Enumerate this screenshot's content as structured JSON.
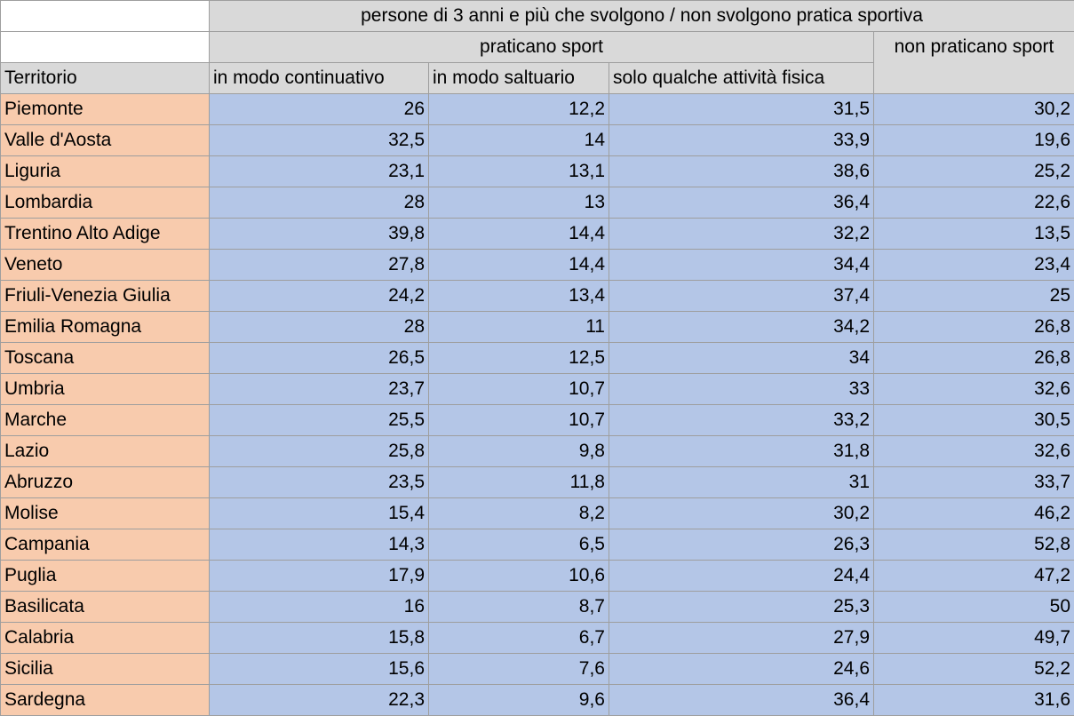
{
  "header": {
    "main_title": "persone di 3 anni e più che svolgono / non svolgono pratica sportiva",
    "group_practice": "praticano sport",
    "group_no_practice": "non praticano sport",
    "col_territory": "Territorio",
    "col_continuous": "in modo continuativo",
    "col_occasional": "in modo saltuario",
    "col_physical": "solo qualche attività fisica"
  },
  "colors": {
    "header_bg": "#d9d9d9",
    "territory_bg": "#f8cbad",
    "value_bg": "#b4c6e7",
    "grid": "#9e9e9e"
  },
  "rows": [
    {
      "territory": "Piemonte",
      "continuous": "26",
      "occasional": "12,2",
      "physical": "31,5",
      "none": "30,2"
    },
    {
      "territory": "Valle d'Aosta",
      "continuous": "32,5",
      "occasional": "14",
      "physical": "33,9",
      "none": "19,6"
    },
    {
      "territory": "Liguria",
      "continuous": "23,1",
      "occasional": "13,1",
      "physical": "38,6",
      "none": "25,2"
    },
    {
      "territory": "Lombardia",
      "continuous": "28",
      "occasional": "13",
      "physical": "36,4",
      "none": "22,6"
    },
    {
      "territory": "Trentino Alto Adige",
      "continuous": "39,8",
      "occasional": "14,4",
      "physical": "32,2",
      "none": "13,5"
    },
    {
      "territory": "Veneto",
      "continuous": "27,8",
      "occasional": "14,4",
      "physical": "34,4",
      "none": "23,4"
    },
    {
      "territory": "Friuli-Venezia Giulia",
      "continuous": "24,2",
      "occasional": "13,4",
      "physical": "37,4",
      "none": "25"
    },
    {
      "territory": "Emilia Romagna",
      "continuous": "28",
      "occasional": "11",
      "physical": "34,2",
      "none": "26,8"
    },
    {
      "territory": "Toscana",
      "continuous": "26,5",
      "occasional": "12,5",
      "physical": "34",
      "none": "26,8"
    },
    {
      "territory": "Umbria",
      "continuous": "23,7",
      "occasional": "10,7",
      "physical": "33",
      "none": "32,6"
    },
    {
      "territory": "Marche",
      "continuous": "25,5",
      "occasional": "10,7",
      "physical": "33,2",
      "none": "30,5"
    },
    {
      "territory": "Lazio",
      "continuous": "25,8",
      "occasional": "9,8",
      "physical": "31,8",
      "none": "32,6"
    },
    {
      "territory": "Abruzzo",
      "continuous": "23,5",
      "occasional": "11,8",
      "physical": "31",
      "none": "33,7"
    },
    {
      "territory": "Molise",
      "continuous": "15,4",
      "occasional": "8,2",
      "physical": "30,2",
      "none": "46,2"
    },
    {
      "territory": "Campania",
      "continuous": "14,3",
      "occasional": "6,5",
      "physical": "26,3",
      "none": "52,8"
    },
    {
      "territory": "Puglia",
      "continuous": "17,9",
      "occasional": "10,6",
      "physical": "24,4",
      "none": "47,2"
    },
    {
      "territory": "Basilicata",
      "continuous": "16",
      "occasional": "8,7",
      "physical": "25,3",
      "none": "50"
    },
    {
      "territory": "Calabria",
      "continuous": "15,8",
      "occasional": "6,7",
      "physical": "27,9",
      "none": "49,7"
    },
    {
      "territory": "Sicilia",
      "continuous": "15,6",
      "occasional": "7,6",
      "physical": "24,6",
      "none": "52,2"
    },
    {
      "territory": "Sardegna",
      "continuous": "22,3",
      "occasional": "9,6",
      "physical": "36,4",
      "none": "31,6"
    }
  ]
}
